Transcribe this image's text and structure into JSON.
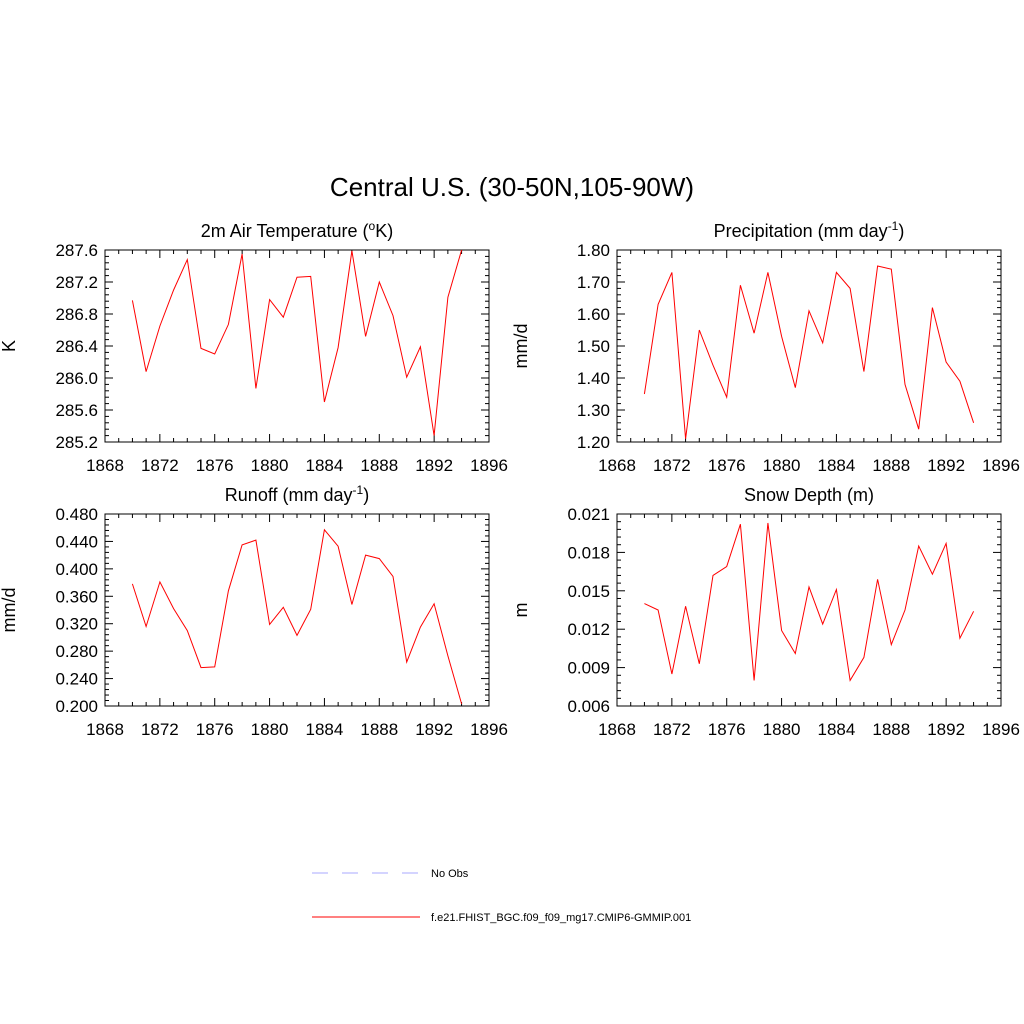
{
  "title": "Central U.S. (30-50N,105-90W)",
  "colors": {
    "model_line": "#ff0000",
    "obs_line": "#aaaaff",
    "axis": "#000000"
  },
  "legend": {
    "entries": [
      {
        "label": "No Obs",
        "style": "dashed",
        "color": "#aaaaff"
      },
      {
        "label": "f.e21.FHIST_BGC.f09_f09_mg17.CMIP6-GMMIP.001",
        "style": "solid",
        "color": "#ff0000"
      }
    ]
  },
  "chart_data": [
    {
      "type": "line",
      "title": "2m Air Temperature (",
      "title_sup": "o",
      "title_after": "K)",
      "ylabel": "K",
      "xlim": [
        1868,
        1896
      ],
      "ylim": [
        285.2,
        287.6
      ],
      "xticks": [
        "1868",
        "1872",
        "1876",
        "1880",
        "1884",
        "1888",
        "1892",
        "1896"
      ],
      "yticks": [
        "285.2",
        "285.6",
        "286.0",
        "286.4",
        "286.8",
        "287.2",
        "287.6"
      ],
      "x": [
        1870,
        1871,
        1872,
        1873,
        1874,
        1875,
        1876,
        1877,
        1878,
        1879,
        1880,
        1881,
        1882,
        1883,
        1884,
        1885,
        1886,
        1887,
        1888,
        1889,
        1890,
        1891,
        1892,
        1893,
        1894
      ],
      "series": [
        {
          "name": "f.e21.FHIST_BGC.f09_f09_mg17.CMIP6-GMMIP.001",
          "values": [
            286.97,
            286.08,
            286.65,
            287.1,
            287.48,
            286.37,
            286.3,
            286.67,
            287.55,
            285.87,
            286.98,
            286.76,
            287.26,
            287.27,
            285.7,
            286.38,
            287.59,
            286.52,
            287.2,
            286.78,
            286.01,
            286.39,
            285.28,
            287.01,
            287.6
          ]
        }
      ]
    },
    {
      "type": "line",
      "title": "Precipitation (mm day",
      "title_sup": "-1",
      "title_after": ")",
      "ylabel": "mm/d",
      "xlim": [
        1868,
        1896
      ],
      "ylim": [
        1.2,
        1.8
      ],
      "xticks": [
        "1868",
        "1872",
        "1876",
        "1880",
        "1884",
        "1888",
        "1892",
        "1896"
      ],
      "yticks": [
        "1.20",
        "1.30",
        "1.40",
        "1.50",
        "1.60",
        "1.70",
        "1.80"
      ],
      "x": [
        1870,
        1871,
        1872,
        1873,
        1874,
        1875,
        1876,
        1877,
        1878,
        1879,
        1880,
        1881,
        1882,
        1883,
        1884,
        1885,
        1886,
        1887,
        1888,
        1889,
        1890,
        1891,
        1892,
        1893,
        1894
      ],
      "series": [
        {
          "name": "f.e21.FHIST_BGC.f09_f09_mg17.CMIP6-GMMIP.001",
          "values": [
            1.35,
            1.63,
            1.73,
            1.21,
            1.55,
            1.44,
            1.34,
            1.69,
            1.54,
            1.73,
            1.53,
            1.37,
            1.61,
            1.51,
            1.73,
            1.68,
            1.42,
            1.75,
            1.74,
            1.38,
            1.24,
            1.62,
            1.45,
            1.39,
            1.26
          ]
        }
      ]
    },
    {
      "type": "line",
      "title": "Runoff (mm day",
      "title_sup": "-1",
      "title_after": ")",
      "ylabel": "mm/d",
      "xlim": [
        1868,
        1896
      ],
      "ylim": [
        0.2,
        0.48
      ],
      "xticks": [
        "1868",
        "1872",
        "1876",
        "1880",
        "1884",
        "1888",
        "1892",
        "1896"
      ],
      "yticks": [
        "0.200",
        "0.240",
        "0.280",
        "0.320",
        "0.360",
        "0.400",
        "0.440",
        "0.480"
      ],
      "x": [
        1870,
        1871,
        1872,
        1873,
        1874,
        1875,
        1876,
        1877,
        1878,
        1879,
        1880,
        1881,
        1882,
        1883,
        1884,
        1885,
        1886,
        1887,
        1888,
        1889,
        1890,
        1891,
        1892,
        1893,
        1894
      ],
      "series": [
        {
          "name": "f.e21.FHIST_BGC.f09_f09_mg17.CMIP6-GMMIP.001",
          "values": [
            0.378,
            0.316,
            0.381,
            0.342,
            0.31,
            0.256,
            0.257,
            0.368,
            0.435,
            0.442,
            0.319,
            0.344,
            0.303,
            0.341,
            0.457,
            0.433,
            0.348,
            0.42,
            0.415,
            0.389,
            0.264,
            0.315,
            0.349,
            0.273,
            0.203
          ]
        }
      ]
    },
    {
      "type": "line",
      "title": "Snow Depth (m)",
      "title_sup": "",
      "title_after": "",
      "ylabel": "m",
      "xlim": [
        1868,
        1896
      ],
      "ylim": [
        0.006,
        0.021
      ],
      "xticks": [
        "1868",
        "1872",
        "1876",
        "1880",
        "1884",
        "1888",
        "1892",
        "1896"
      ],
      "yticks": [
        "0.006",
        "0.009",
        "0.012",
        "0.015",
        "0.018",
        "0.021"
      ],
      "x": [
        1870,
        1871,
        1872,
        1873,
        1874,
        1875,
        1876,
        1877,
        1878,
        1879,
        1880,
        1881,
        1882,
        1883,
        1884,
        1885,
        1886,
        1887,
        1888,
        1889,
        1890,
        1891,
        1892,
        1893,
        1894
      ],
      "series": [
        {
          "name": "f.e21.FHIST_BGC.f09_f09_mg17.CMIP6-GMMIP.001",
          "values": [
            0.014,
            0.0135,
            0.0085,
            0.0138,
            0.0093,
            0.0162,
            0.0169,
            0.0202,
            0.008,
            0.0203,
            0.0119,
            0.0101,
            0.0153,
            0.0124,
            0.0151,
            0.008,
            0.0098,
            0.0159,
            0.0108,
            0.0135,
            0.0185,
            0.0163,
            0.0187,
            0.0113,
            0.0134
          ]
        }
      ]
    }
  ]
}
